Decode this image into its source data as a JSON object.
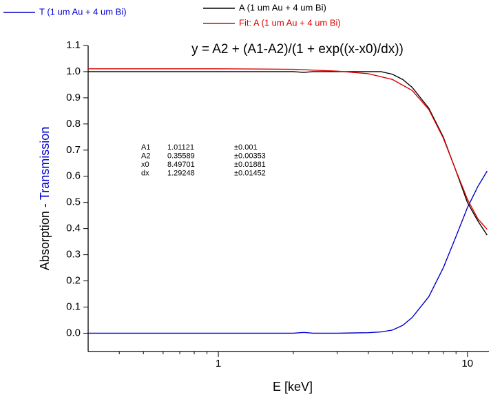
{
  "chart_data": {
    "type": "line",
    "title": "y = A2 + (A1-A2)/(1 + exp((x-x0)/dx))",
    "x_label": "E [keV]",
    "y_label_parts": [
      {
        "text": "Absorption -",
        "color": "#000000"
      },
      {
        "text": "Transmission",
        "color": "#0000cc"
      }
    ],
    "x_log": true,
    "xlim": [
      0.3,
      12.2
    ],
    "xticks": [
      1,
      10
    ],
    "x_minor_ticks": [
      0.4,
      0.5,
      0.6,
      0.7,
      0.8,
      0.9,
      2,
      3,
      4,
      5,
      6,
      7,
      8,
      9
    ],
    "ylim": [
      -0.07,
      1.1
    ],
    "yticks": [
      {
        "value": 0,
        "label": "0.0"
      },
      0.1,
      0.2,
      0.3,
      0.4,
      0.5,
      0.6,
      0.7,
      0.8,
      0.9,
      {
        "value": 1,
        "label": "1.0"
      },
      1.1
    ],
    "series": [
      {
        "name": "T (1 um Au + 4 um Bi)",
        "color": "#0000cc",
        "x": [
          0.3,
          1,
          2,
          2.2,
          2.4,
          3,
          4,
          4.5,
          5,
          5.5,
          6,
          7,
          8,
          9,
          10,
          11,
          12
        ],
        "values": [
          0,
          0,
          0,
          0.003,
          0,
          0,
          0.002,
          0.005,
          0.012,
          0.03,
          0.06,
          0.14,
          0.25,
          0.37,
          0.48,
          0.56,
          0.62
        ]
      },
      {
        "name": "A (1 um Au + 4 um Bi)",
        "color": "#000000",
        "x": [
          0.3,
          1,
          2,
          2.2,
          2.4,
          3,
          4,
          4.5,
          5,
          5.5,
          6,
          7,
          8,
          9,
          10,
          11,
          12
        ],
        "values": [
          1.0,
          1.0,
          1.0,
          0.997,
          1.0,
          1.0,
          1.0,
          1.0,
          0.99,
          0.97,
          0.94,
          0.86,
          0.75,
          0.62,
          0.5,
          0.43,
          0.375
        ]
      },
      {
        "name": "Fit: A (1 um Au + 4 um Bi)",
        "color": "#dd0000",
        "x": [
          0.3,
          1,
          2,
          3,
          4,
          5,
          6,
          7,
          8,
          9,
          10,
          11,
          12
        ],
        "values": [
          1.011,
          1.011,
          1.009,
          1.002,
          0.992,
          0.97,
          0.928,
          0.855,
          0.746,
          0.621,
          0.512,
          0.438,
          0.397
        ]
      }
    ],
    "fit_parameters": [
      [
        "A1",
        "1.01121",
        "±0.001"
      ],
      [
        "A2",
        "0.35589",
        "±0.00353"
      ],
      [
        "x0",
        "8.49701",
        "±0.01881"
      ],
      [
        "dx",
        "1.29248",
        "±0.01452"
      ]
    ]
  }
}
